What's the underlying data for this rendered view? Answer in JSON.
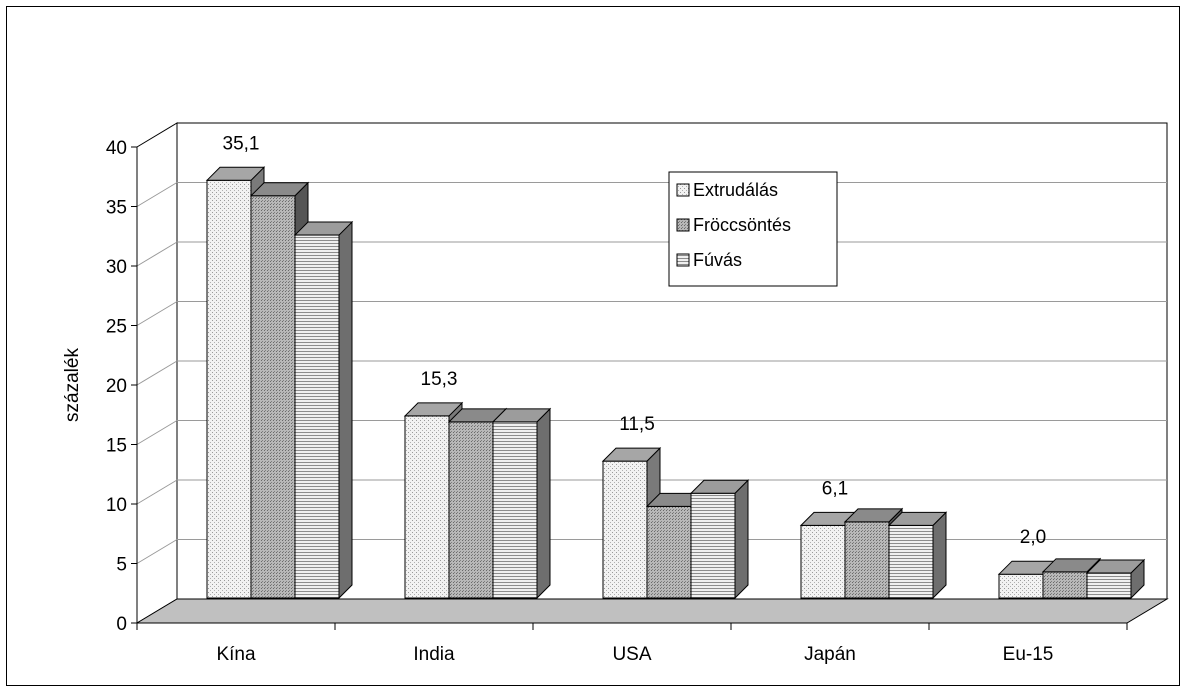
{
  "chart_data": {
    "type": "bar",
    "ylabel": "százalék",
    "ylim": [
      0,
      40
    ],
    "yticks": [
      "0",
      "5",
      "10",
      "15",
      "20",
      "25",
      "30",
      "35",
      "40"
    ],
    "categories": [
      "Kína",
      "India",
      "USA",
      "Japán",
      "Eu-15"
    ],
    "series": [
      {
        "name": "Extrudálás",
        "values": [
          35.1,
          15.3,
          11.5,
          6.1,
          2.0
        ]
      },
      {
        "name": "Fröccsöntés",
        "values": [
          33.8,
          14.8,
          7.7,
          6.4,
          2.2
        ]
      },
      {
        "name": "Fúvás",
        "values": [
          30.5,
          14.8,
          8.8,
          6.1,
          2.1
        ]
      }
    ],
    "data_labels": [
      "35,1",
      "15,3",
      "11,5",
      "6,1",
      "2,0"
    ],
    "legend_position": "top-right",
    "grid": true,
    "style": "3d-clustered"
  }
}
